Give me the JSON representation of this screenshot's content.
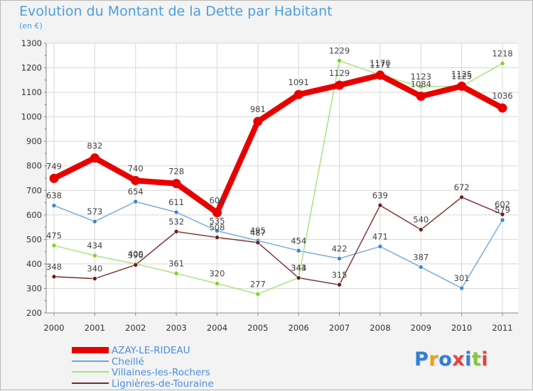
{
  "title": "Evolution du Montant de la Dette par Habitant",
  "subtitle": "(en €)",
  "logo": {
    "text": "Proxiti",
    "letter_colors": [
      "#2f7fd8",
      "#e8a020",
      "#2f7fd8",
      "#e84040",
      "#2f7fd8",
      "#8ac43a",
      "#e84040"
    ]
  },
  "chart_data": {
    "type": "line",
    "title": "Evolution du Montant de la Dette par Habitant",
    "subtitle": "(en €)",
    "xlabel": "",
    "ylabel": "",
    "categories": [
      "2000",
      "2001",
      "2002",
      "2003",
      "2004",
      "2005",
      "2006",
      "2007",
      "2008",
      "2009",
      "2010",
      "2011"
    ],
    "ylim": [
      200,
      1300
    ],
    "yticks": [
      200,
      300,
      400,
      500,
      600,
      700,
      800,
      900,
      1000,
      1100,
      1200,
      1300
    ],
    "grid": true,
    "legend_position": "bottom-left",
    "series": [
      {
        "name": "AZAY-LE-RIDEAU",
        "color": "#e80000",
        "marker_color": "#e80000",
        "values": [
          749,
          832,
          740,
          728,
          609,
          981,
          1091,
          1129,
          1170,
          1084,
          1125,
          1036
        ]
      },
      {
        "name": "Cheillé",
        "color": "#6fa8dc",
        "marker_color": "#3d85c6",
        "values": [
          638,
          573,
          654,
          611,
          535,
          495,
          454,
          422,
          471,
          387,
          301,
          579
        ]
      },
      {
        "name": "Villaines-les-Rochers",
        "color": "#a8e07a",
        "marker_color": "#7ed321",
        "values": [
          475,
          434,
          400,
          361,
          320,
          277,
          344,
          1229,
          1171,
          1123,
          1125,
          1218
        ]
      },
      {
        "name": "Lignières-de-Touraine",
        "color": "#7a2a2a",
        "marker_color": "#6b1f1f",
        "values": [
          348,
          340,
          396,
          532,
          508,
          487,
          343,
          315,
          639,
          540,
          672,
          602
        ]
      }
    ]
  }
}
